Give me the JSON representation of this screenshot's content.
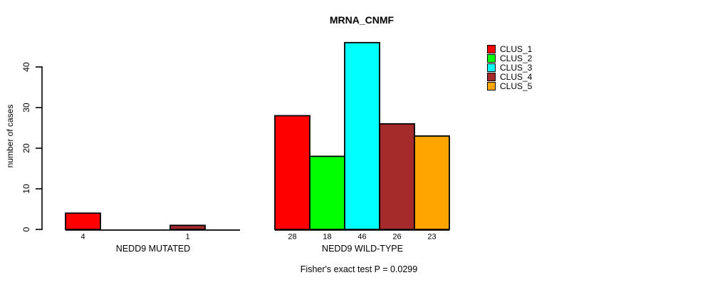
{
  "chart_data": {
    "type": "bar",
    "title": "MRNA_CNMF",
    "ylabel": "number of cases",
    "xlabel": "",
    "note": "Fisher's exact test P = 0.0299",
    "yticks": [
      0,
      10,
      20,
      30,
      40
    ],
    "ylim": [
      0,
      46
    ],
    "grid": false,
    "legend_position": "top-right",
    "series": [
      "CLUS_1",
      "CLUS_2",
      "CLUS_3",
      "CLUS_4",
      "CLUS_5"
    ],
    "legend": [
      {
        "label": "CLUS_1",
        "color": "#FF0000"
      },
      {
        "label": "CLUS_2",
        "color": "#00FF00"
      },
      {
        "label": "CLUS_3",
        "color": "#00FFFF"
      },
      {
        "label": "CLUS_4",
        "color": "#A52A2A"
      },
      {
        "label": "CLUS_5",
        "color": "#FFA500"
      }
    ],
    "groups": [
      {
        "label": "NEDD9 MUTATED",
        "values": [
          4,
          0,
          0,
          1,
          0
        ]
      },
      {
        "label": "NEDD9 WILD-TYPE",
        "values": [
          28,
          18,
          46,
          26,
          23
        ]
      }
    ]
  }
}
